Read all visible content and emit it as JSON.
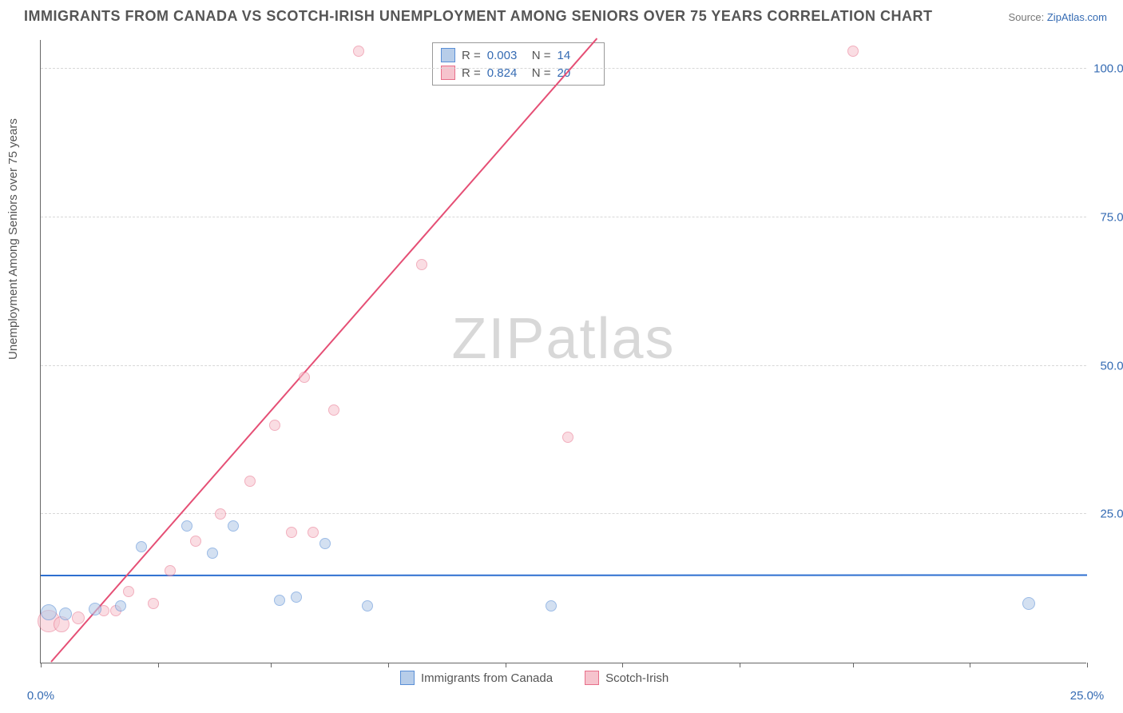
{
  "title": "IMMIGRANTS FROM CANADA VS SCOTCH-IRISH UNEMPLOYMENT AMONG SENIORS OVER 75 YEARS CORRELATION CHART",
  "source_prefix": "Source: ",
  "source_link": "ZipAtlas.com",
  "ylabel": "Unemployment Among Seniors over 75 years",
  "watermark_a": "ZIP",
  "watermark_b": "atlas",
  "chart": {
    "type": "scatter",
    "xlim": [
      0,
      25
    ],
    "ylim": [
      0,
      105
    ],
    "xticks": [
      0,
      2.8,
      5.5,
      8.3,
      11.1,
      13.9,
      16.7,
      19.4,
      22.2,
      25
    ],
    "xtick_labels": {
      "0": "0.0%",
      "25": "25.0%"
    },
    "yticks": [
      25,
      50,
      75,
      100
    ],
    "ytick_labels": [
      "25.0%",
      "50.0%",
      "75.0%",
      "100.0%"
    ],
    "background_color": "#ffffff",
    "grid_color": "#d8d8d8",
    "axis_color": "#666666",
    "tick_label_color": "#356bb3"
  },
  "series": [
    {
      "name": "Immigrants from Canada",
      "fill": "#b7cde9",
      "stroke": "#5a8fd6",
      "fill_opacity": 0.6,
      "R": "0.003",
      "N": "14",
      "trend": {
        "slope": 0.003,
        "intercept": 14.5,
        "color": "#2d6fd0",
        "width": 2
      },
      "points": [
        {
          "x": 0.2,
          "y": 8.5,
          "r": 10
        },
        {
          "x": 0.6,
          "y": 8.2,
          "r": 8
        },
        {
          "x": 1.3,
          "y": 9.0,
          "r": 8
        },
        {
          "x": 1.9,
          "y": 9.5,
          "r": 7
        },
        {
          "x": 2.4,
          "y": 19.5,
          "r": 7
        },
        {
          "x": 3.5,
          "y": 23.0,
          "r": 7
        },
        {
          "x": 4.1,
          "y": 18.5,
          "r": 7
        },
        {
          "x": 4.6,
          "y": 23.0,
          "r": 7
        },
        {
          "x": 5.7,
          "y": 10.5,
          "r": 7
        },
        {
          "x": 6.1,
          "y": 11.0,
          "r": 7
        },
        {
          "x": 6.8,
          "y": 20.0,
          "r": 7
        },
        {
          "x": 7.8,
          "y": 9.5,
          "r": 7
        },
        {
          "x": 12.2,
          "y": 9.5,
          "r": 7
        },
        {
          "x": 23.6,
          "y": 10.0,
          "r": 8
        }
      ]
    },
    {
      "name": "Scotch-Irish",
      "fill": "#f6c3cd",
      "stroke": "#e86f8a",
      "fill_opacity": 0.55,
      "R": "0.824",
      "N": "20",
      "trend": {
        "slope": 8.05,
        "intercept": -2.0,
        "color": "#e54f75",
        "width": 2
      },
      "points": [
        {
          "x": 0.2,
          "y": 7.0,
          "r": 14
        },
        {
          "x": 0.5,
          "y": 6.5,
          "r": 10
        },
        {
          "x": 0.9,
          "y": 7.5,
          "r": 8
        },
        {
          "x": 1.5,
          "y": 8.8,
          "r": 7
        },
        {
          "x": 1.8,
          "y": 8.7,
          "r": 7
        },
        {
          "x": 2.1,
          "y": 12.0,
          "r": 7
        },
        {
          "x": 2.7,
          "y": 10.0,
          "r": 7
        },
        {
          "x": 3.1,
          "y": 15.5,
          "r": 7
        },
        {
          "x": 3.7,
          "y": 20.5,
          "r": 7
        },
        {
          "x": 4.3,
          "y": 25.0,
          "r": 7
        },
        {
          "x": 5.0,
          "y": 30.5,
          "r": 7
        },
        {
          "x": 5.6,
          "y": 40.0,
          "r": 7
        },
        {
          "x": 6.0,
          "y": 22.0,
          "r": 7
        },
        {
          "x": 6.5,
          "y": 22.0,
          "r": 7
        },
        {
          "x": 6.3,
          "y": 48.0,
          "r": 7
        },
        {
          "x": 7.0,
          "y": 42.5,
          "r": 7
        },
        {
          "x": 7.6,
          "y": 103.0,
          "r": 7
        },
        {
          "x": 9.1,
          "y": 67.0,
          "r": 7
        },
        {
          "x": 12.6,
          "y": 38.0,
          "r": 7
        },
        {
          "x": 19.4,
          "y": 103.0,
          "r": 7
        }
      ]
    }
  ],
  "stats_labels": {
    "R": "R =",
    "N": "N ="
  }
}
